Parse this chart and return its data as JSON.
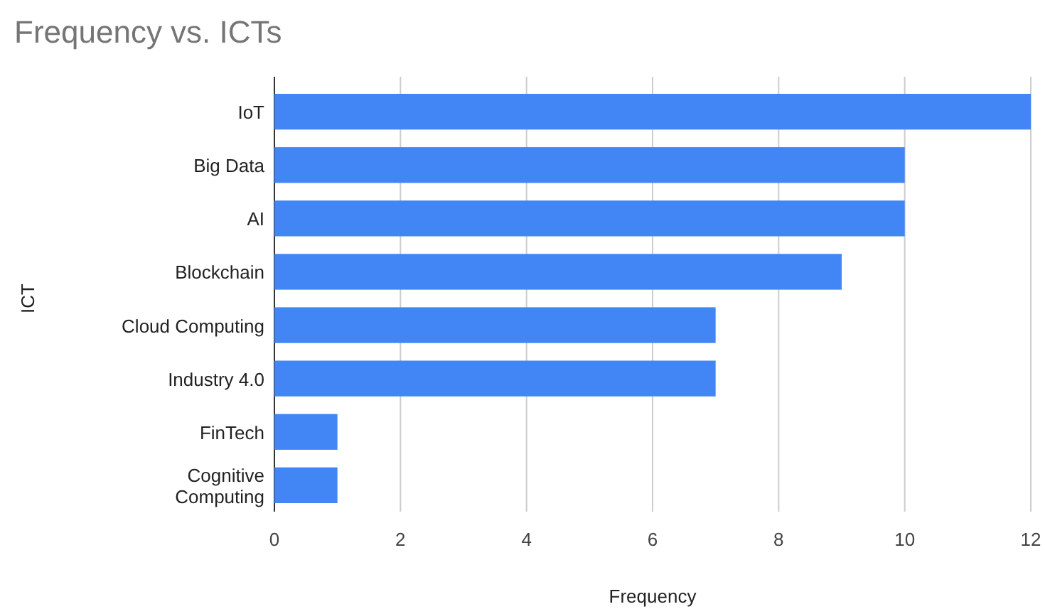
{
  "chart_data": {
    "type": "bar",
    "orientation": "horizontal",
    "title": "Frequency vs. ICTs",
    "xlabel": "Frequency",
    "ylabel": "ICT",
    "categories": [
      "IoT",
      "Big Data",
      "AI",
      "Blockchain",
      "Cloud Computing",
      "Industry 4.0",
      "FinTech",
      "Cognitive Computing"
    ],
    "values": [
      12,
      10,
      10,
      9,
      7,
      7,
      1,
      1
    ],
    "color": "#4285f4",
    "xlim": [
      0,
      12
    ],
    "xticks": [
      0,
      2,
      4,
      6,
      8,
      10,
      12
    ],
    "grid": "x"
  }
}
